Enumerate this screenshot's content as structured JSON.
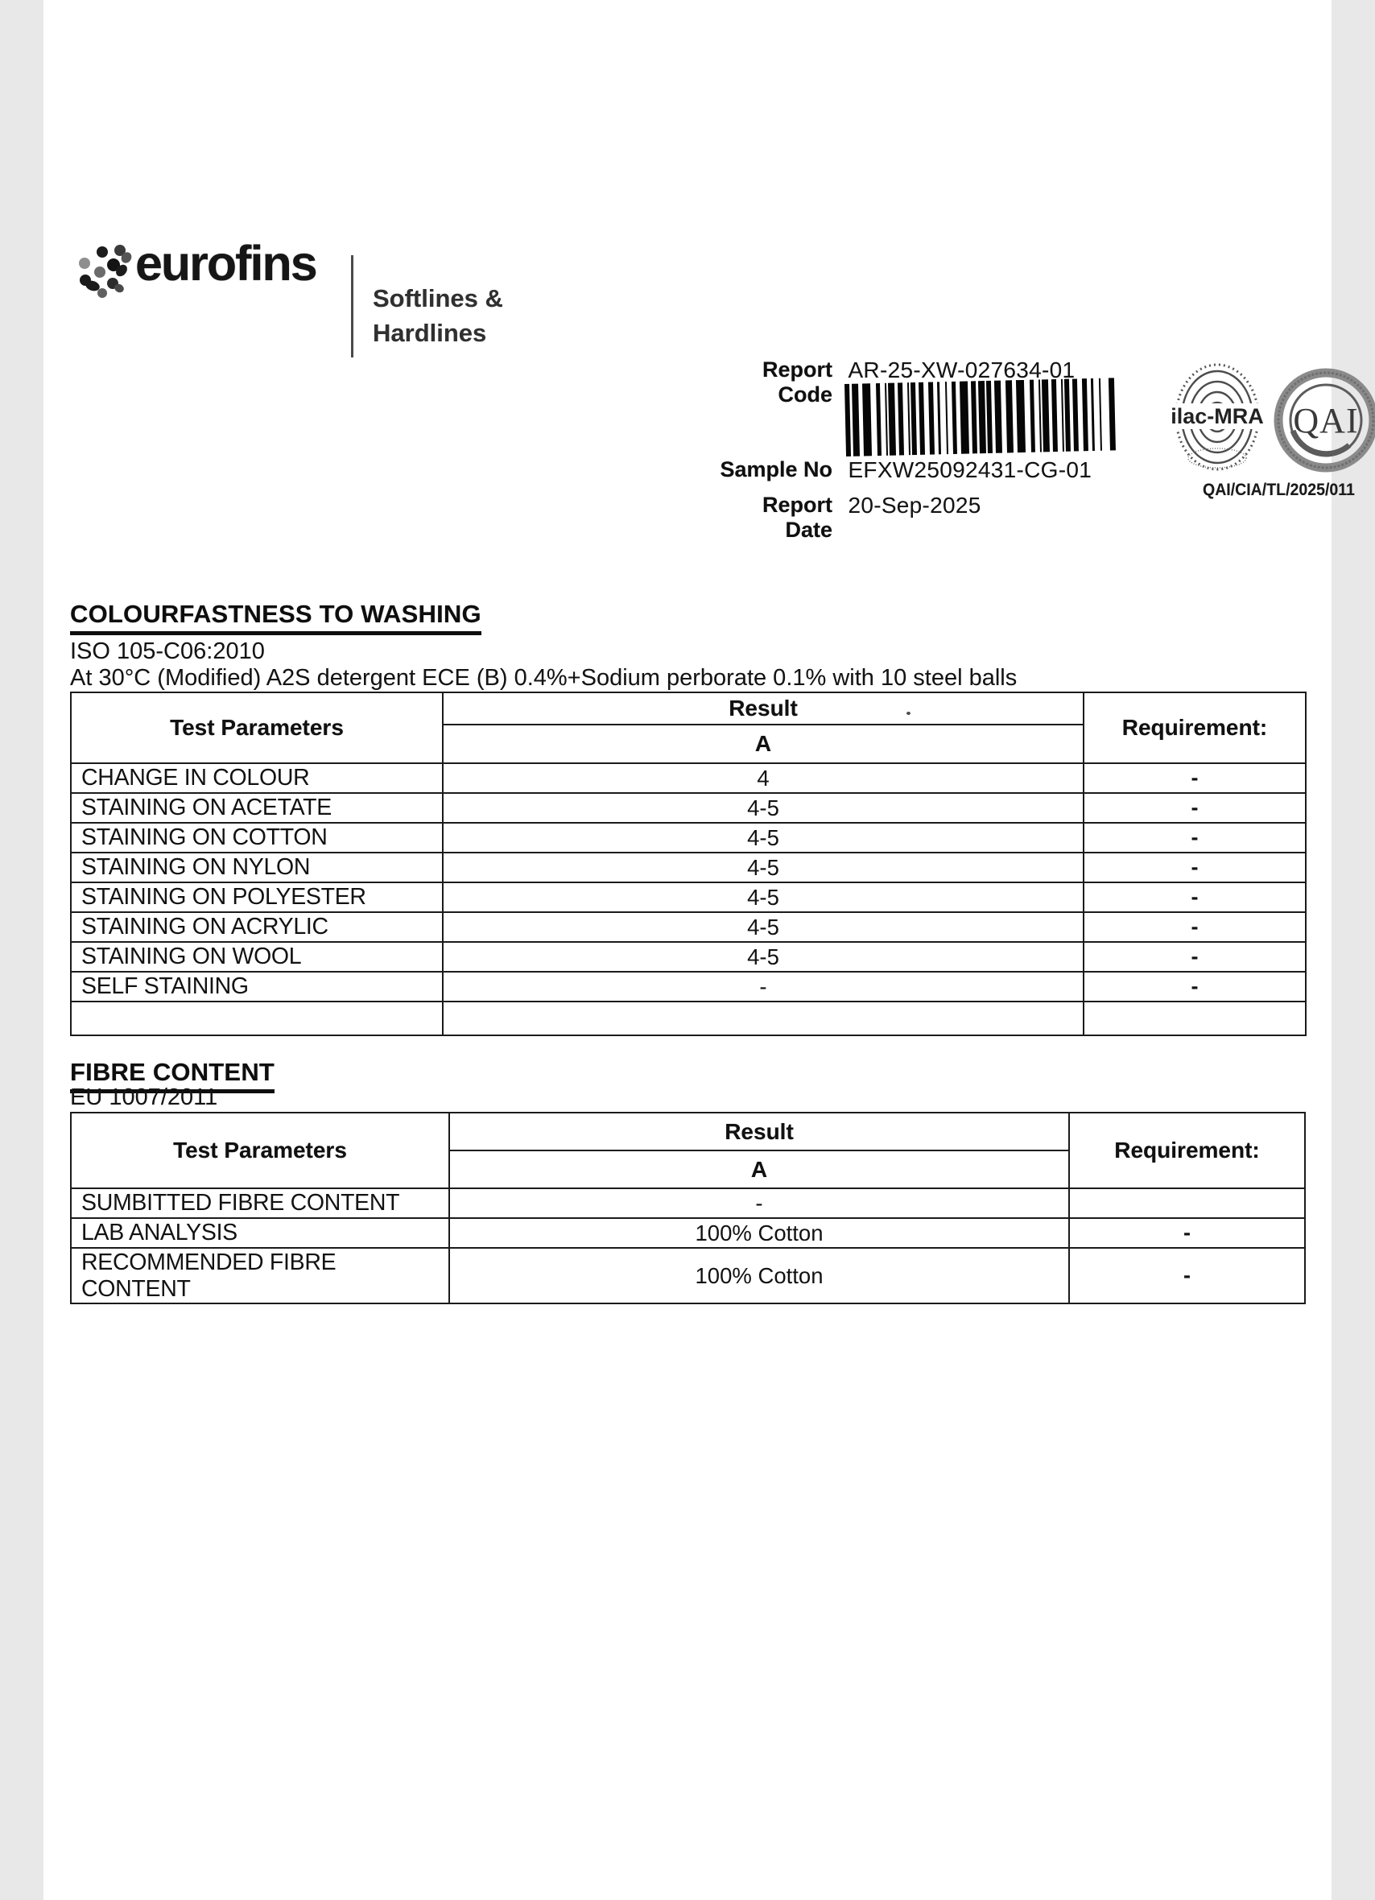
{
  "brand": {
    "name": "eurofins",
    "division_line1": "Softlines &",
    "division_line2": "Hardlines"
  },
  "report": {
    "meta": [
      {
        "label": "Report Code",
        "value": "AR-25-XW-027634-01"
      },
      {
        "label": "Sample No",
        "value": "EFXW25092431-CG-01"
      },
      {
        "label": "Report Date",
        "value": "20-Sep-2025"
      }
    ],
    "accreditation": {
      "ilac_mark": "ilac-MRA",
      "qai_mark": "QAI",
      "cert_no": "QAI/CIA/TL/2025/011"
    }
  },
  "sections": [
    {
      "title": "COLOURFASTNESS TO WASHING",
      "method": "ISO 105-C06:2010",
      "condition": "At 30°C (Modified) A2S detergent ECE (B) 0.4%+Sodium perborate 0.1% with 10 steel balls",
      "table": {
        "param_header": "Test Parameters",
        "result_header": "Result",
        "result_sub_header": "A",
        "requirement_header": "Requirement:",
        "rows": [
          {
            "param": "CHANGE IN COLOUR",
            "result": "4",
            "req": "-"
          },
          {
            "param": "STAINING ON ACETATE",
            "result": "4-5",
            "req": "-"
          },
          {
            "param": "STAINING ON COTTON",
            "result": "4-5",
            "req": "-"
          },
          {
            "param": "STAINING ON NYLON",
            "result": "4-5",
            "req": "-"
          },
          {
            "param": "STAINING ON POLYESTER",
            "result": "4-5",
            "req": "-"
          },
          {
            "param": "STAINING ON ACRYLIC",
            "result": "4-5",
            "req": "-"
          },
          {
            "param": "STAINING ON WOOL",
            "result": "4-5",
            "req": "-"
          },
          {
            "param": "SELF STAINING",
            "result": "-",
            "req": "-"
          },
          {
            "param": "",
            "result": "",
            "req": ""
          }
        ]
      }
    },
    {
      "title": "FIBRE CONTENT",
      "method": "EU 1007/2011",
      "condition": "",
      "table": {
        "param_header": "Test Parameters",
        "result_header": "Result",
        "result_sub_header": "A",
        "requirement_header": "Requirement:",
        "rows": [
          {
            "param": "SUMBITTED FIBRE CONTENT",
            "result": "-",
            "req": ""
          },
          {
            "param": "LAB ANALYSIS",
            "result": "100% Cotton",
            "req": "-"
          },
          {
            "param": "RECOMMENDED FIBRE CONTENT",
            "result": "100% Cotton",
            "req": "-"
          }
        ]
      }
    }
  ]
}
